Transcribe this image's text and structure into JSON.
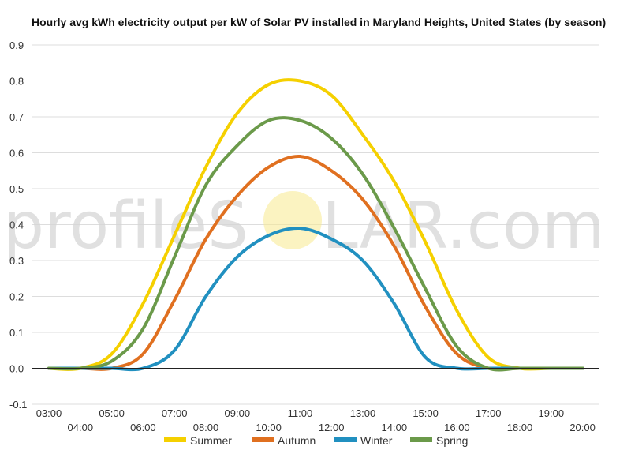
{
  "watermark": {
    "before": "profileS",
    "after": "LAR.com",
    "sun_color": "#f7e98e"
  },
  "chart_data": {
    "type": "line",
    "title": "Hourly avg kWh electricity output per kW of Solar PV installed in Maryland Heights, United States (by season)",
    "xlabel": "",
    "ylabel": "",
    "x": [
      "03:00",
      "04:00",
      "05:00",
      "06:00",
      "07:00",
      "08:00",
      "09:00",
      "10:00",
      "11:00",
      "12:00",
      "13:00",
      "14:00",
      "15:00",
      "16:00",
      "17:00",
      "18:00",
      "19:00",
      "20:00"
    ],
    "ylim": [
      -0.1,
      0.9
    ],
    "yticks": [
      "-0.1",
      "0.0",
      "0.1",
      "0.2",
      "0.3",
      "0.4",
      "0.5",
      "0.6",
      "0.7",
      "0.8",
      "0.9"
    ],
    "grid": true,
    "legend_position": "bottom",
    "series": [
      {
        "name": "Summer",
        "color": "#f5d000",
        "values": [
          0.0,
          0.0,
          0.04,
          0.18,
          0.37,
          0.56,
          0.71,
          0.79,
          0.8,
          0.76,
          0.65,
          0.52,
          0.35,
          0.16,
          0.03,
          0.0,
          0.0,
          0.0
        ]
      },
      {
        "name": "Autumn",
        "color": "#e07020",
        "values": [
          0.0,
          0.0,
          0.0,
          0.04,
          0.19,
          0.36,
          0.48,
          0.56,
          0.59,
          0.55,
          0.47,
          0.34,
          0.17,
          0.04,
          0.0,
          0.0,
          0.0,
          0.0
        ]
      },
      {
        "name": "Winter",
        "color": "#2190c0",
        "values": [
          0.0,
          0.0,
          0.0,
          0.0,
          0.05,
          0.2,
          0.31,
          0.37,
          0.39,
          0.36,
          0.3,
          0.18,
          0.03,
          0.0,
          0.0,
          0.0,
          0.0,
          0.0
        ]
      },
      {
        "name": "Spring",
        "color": "#6b9a4a",
        "values": [
          0.0,
          0.0,
          0.02,
          0.11,
          0.31,
          0.51,
          0.62,
          0.69,
          0.69,
          0.64,
          0.54,
          0.39,
          0.22,
          0.06,
          0.0,
          0.0,
          0.0,
          0.0
        ]
      }
    ]
  }
}
